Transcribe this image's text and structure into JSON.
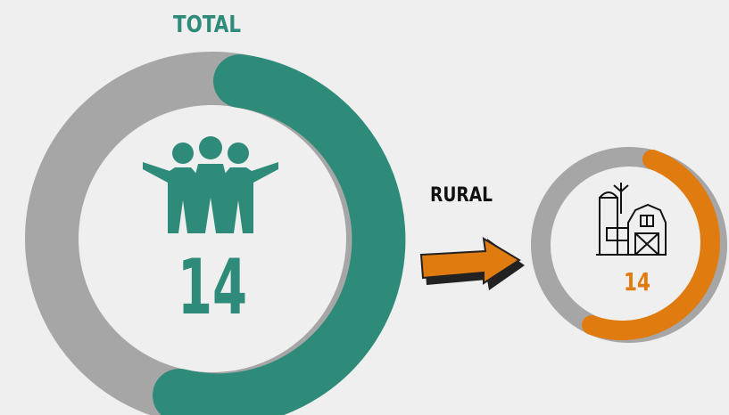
{
  "total": {
    "label": "TOTAL",
    "value": "14"
  },
  "rural": {
    "label": "RURAL",
    "value": "14"
  }
}
